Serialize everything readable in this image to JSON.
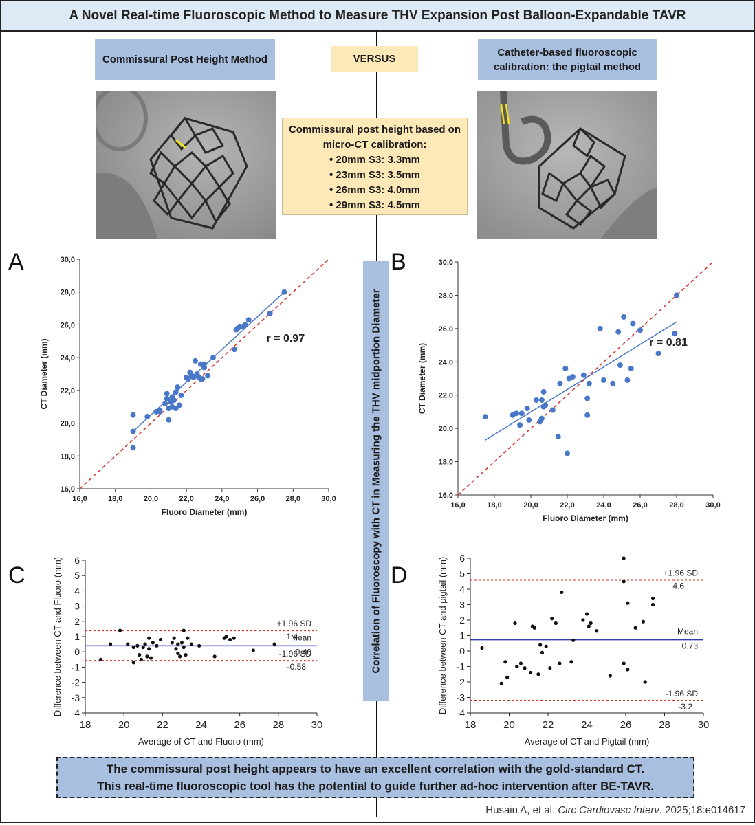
{
  "title": "A Novel Real-time Fluoroscopic Method to Measure THV Expansion Post Balloon-Expandable TAVR",
  "left_method": "Commissural Post Height Method",
  "versus": "VERSUS",
  "right_method_line1": "Catheter-based fluoroscopic",
  "right_method_line2": "calibration: the pigtail method",
  "calibration": {
    "heading_line1": "Commissural post height based on",
    "heading_line2": "micro-CT calibration:",
    "items": [
      "• 20mm S3: 3.3mm",
      "• 23mm S3: 3.5mm",
      "• 26mm S3: 4.0mm",
      "• 29mm S3: 4.5mm"
    ]
  },
  "vertical_label": "Correlation of Fluoroscopy with CT in Measuring the THV midportion Diameter",
  "panel_letters": [
    "A",
    "B",
    "C",
    "D"
  ],
  "conclusion_line1": "The commissural post height appears to have an excellent correlation with the gold-standard CT.",
  "conclusion_line2": "This real-time fluoroscopic tool has the potential to guide further ad-hoc intervention after BE-TAVR.",
  "citation_authors": "Husain A, et al. ",
  "citation_journal": "Circ Cardiovasc Interv",
  "citation_rest": ". 2025;18:e014617",
  "colors": {
    "accent_blue": "#a9bfe0",
    "cream": "#fde8b8",
    "point": "#4a78c8",
    "fit": "#4a78c8",
    "identity": "#d9312b"
  },
  "chart_data": [
    {
      "id": "A",
      "type": "scatter",
      "xlabel": "Fluoro Diameter (mm)",
      "ylabel": "CT Diameter (mm)",
      "xlim": [
        16,
        30
      ],
      "ylim": [
        16,
        30
      ],
      "ticks": [
        "16,0",
        "18,0",
        "20,0",
        "22,0",
        "24,0",
        "26,0",
        "28,0",
        "30,0"
      ],
      "annotation": "r = 0.97",
      "fit_line": [
        [
          19,
          19.5
        ],
        [
          27.5,
          28.0
        ]
      ],
      "points": [
        [
          19.0,
          18.5
        ],
        [
          19.0,
          19.5
        ],
        [
          19.0,
          20.5
        ],
        [
          19.8,
          20.4
        ],
        [
          20.3,
          20.7
        ],
        [
          20.5,
          20.8
        ],
        [
          20.5,
          20.7
        ],
        [
          20.8,
          21.2
        ],
        [
          20.9,
          21.5
        ],
        [
          20.9,
          21.8
        ],
        [
          21.0,
          20.9
        ],
        [
          21.0,
          20.2
        ],
        [
          21.1,
          21.3
        ],
        [
          21.2,
          21.0
        ],
        [
          21.2,
          21.6
        ],
        [
          21.3,
          21.4
        ],
        [
          21.4,
          21.9
        ],
        [
          21.4,
          20.9
        ],
        [
          21.5,
          22.2
        ],
        [
          21.6,
          21.1
        ],
        [
          21.7,
          21.7
        ],
        [
          22.0,
          22.8
        ],
        [
          22.1,
          22.7
        ],
        [
          22.2,
          23.1
        ],
        [
          22.3,
          22.9
        ],
        [
          22.4,
          22.8
        ],
        [
          22.5,
          23.8
        ],
        [
          22.6,
          23.0
        ],
        [
          22.7,
          22.8
        ],
        [
          22.8,
          23.6
        ],
        [
          22.8,
          22.7
        ],
        [
          22.9,
          22.7
        ],
        [
          23.0,
          23.4
        ],
        [
          23.0,
          23.6
        ],
        [
          23.2,
          22.9
        ],
        [
          23.5,
          24.0
        ],
        [
          24.7,
          24.5
        ],
        [
          24.8,
          25.7
        ],
        [
          24.9,
          25.8
        ],
        [
          25.0,
          25.9
        ],
        [
          25.2,
          25.9
        ],
        [
          25.3,
          26.0
        ],
        [
          25.5,
          26.3
        ],
        [
          26.7,
          26.7
        ],
        [
          27.5,
          28.0
        ]
      ]
    },
    {
      "id": "B",
      "type": "scatter",
      "xlabel": "Fluoro Diameter (mm)",
      "ylabel": "CT Diameter (mm)",
      "xlim": [
        16,
        30
      ],
      "ylim": [
        16,
        30
      ],
      "ticks": [
        "16,0",
        "18,0",
        "20,0",
        "22,0",
        "24,0",
        "26,0",
        "28,0",
        "30,0"
      ],
      "annotation": "r = 0.81",
      "fit_line": [
        [
          17.5,
          19.3
        ],
        [
          28.0,
          26.4
        ]
      ],
      "points": [
        [
          17.5,
          20.7
        ],
        [
          19.0,
          20.8
        ],
        [
          19.2,
          20.9
        ],
        [
          19.4,
          20.2
        ],
        [
          19.5,
          20.9
        ],
        [
          19.8,
          21.2
        ],
        [
          19.9,
          20.5
        ],
        [
          20.3,
          21.7
        ],
        [
          20.5,
          20.4
        ],
        [
          20.6,
          21.7
        ],
        [
          20.6,
          20.6
        ],
        [
          20.7,
          22.2
        ],
        [
          20.7,
          21.3
        ],
        [
          20.8,
          21.4
        ],
        [
          21.2,
          21.1
        ],
        [
          21.5,
          19.5
        ],
        [
          21.6,
          22.7
        ],
        [
          21.9,
          23.6
        ],
        [
          22.0,
          18.5
        ],
        [
          22.1,
          23.0
        ],
        [
          22.3,
          23.1
        ],
        [
          22.9,
          23.2
        ],
        [
          23.1,
          21.8
        ],
        [
          23.1,
          20.8
        ],
        [
          23.2,
          22.7
        ],
        [
          23.8,
          26.0
        ],
        [
          24.0,
          22.9
        ],
        [
          24.5,
          22.7
        ],
        [
          24.8,
          25.8
        ],
        [
          24.9,
          23.8
        ],
        [
          25.1,
          26.7
        ],
        [
          25.3,
          22.9
        ],
        [
          25.5,
          23.6
        ],
        [
          25.6,
          26.3
        ],
        [
          26.0,
          25.9
        ],
        [
          27.0,
          24.5
        ],
        [
          27.9,
          25.7
        ],
        [
          28.0,
          28.0
        ]
      ]
    },
    {
      "id": "C",
      "type": "scatter",
      "xlabel": "Average of CT and Fluoro (mm)",
      "ylabel": "Difference between CT and Fluoro (mm)",
      "xlim": [
        18,
        30
      ],
      "ylim": [
        -4,
        6
      ],
      "xticks": [
        "18",
        "20",
        "22",
        "24",
        "26",
        "28",
        "30"
      ],
      "yticks": [
        "-4",
        "-3",
        "-2",
        "-1",
        "0",
        "1",
        "2",
        "3",
        "4",
        "5",
        "6"
      ],
      "mean": 0.4,
      "upper": 1.4,
      "lower": -0.58,
      "upper_label": "+1.96 SD",
      "upper_value": "1.4",
      "mean_label": "Mean",
      "mean_value": "0.40",
      "lower_label": "-1.96 SD",
      "lower_value": "-0.58",
      "points": [
        [
          18.8,
          -0.5
        ],
        [
          19.3,
          0.5
        ],
        [
          19.8,
          1.4
        ],
        [
          20.2,
          0.5
        ],
        [
          20.5,
          0.3
        ],
        [
          20.5,
          -0.7
        ],
        [
          20.7,
          0.4
        ],
        [
          20.8,
          -0.2
        ],
        [
          20.9,
          -0.5
        ],
        [
          21.0,
          0.3
        ],
        [
          21.1,
          0.5
        ],
        [
          21.2,
          -0.3
        ],
        [
          21.3,
          0.9
        ],
        [
          21.3,
          0.2
        ],
        [
          21.4,
          -0.4
        ],
        [
          21.5,
          0.6
        ],
        [
          21.7,
          0.4
        ],
        [
          21.9,
          0.8
        ],
        [
          22.5,
          0.6
        ],
        [
          22.6,
          0.9
        ],
        [
          22.7,
          0.2
        ],
        [
          22.8,
          0.5
        ],
        [
          22.8,
          -0.1
        ],
        [
          22.9,
          -0.3
        ],
        [
          23.0,
          0.6
        ],
        [
          23.1,
          1.4
        ],
        [
          23.1,
          0.3
        ],
        [
          23.2,
          -0.2
        ],
        [
          23.3,
          0.9
        ],
        [
          23.5,
          0.5
        ],
        [
          23.9,
          0.4
        ],
        [
          24.7,
          -0.3
        ],
        [
          25.2,
          0.9
        ],
        [
          25.3,
          1.0
        ],
        [
          25.5,
          0.8
        ],
        [
          25.7,
          0.9
        ],
        [
          26.7,
          0.1
        ],
        [
          27.8,
          0.5
        ]
      ]
    },
    {
      "id": "D",
      "type": "scatter",
      "xlabel": "Average of CT and Pigtail (mm)",
      "ylabel": "Difference between CT and pigtail (mm)",
      "xlim": [
        18,
        30
      ],
      "ylim": [
        -4,
        6
      ],
      "xticks": [
        "18",
        "20",
        "22",
        "24",
        "26",
        "28",
        "30"
      ],
      "yticks": [
        "-4",
        "-3",
        "-2",
        "-1",
        "0",
        "1",
        "2",
        "3",
        "4",
        "5",
        "6"
      ],
      "mean": 0.73,
      "upper": 4.6,
      "lower": -3.2,
      "upper_label": "+1.96 SD",
      "upper_value": "4.6",
      "mean_label": "Mean",
      "mean_value": "0.73",
      "lower_label": "-1.96 SD",
      "lower_value": "-3.2",
      "points": [
        [
          18.6,
          0.2
        ],
        [
          19.6,
          -2.1
        ],
        [
          19.8,
          -0.7
        ],
        [
          19.9,
          -1.7
        ],
        [
          20.3,
          1.8
        ],
        [
          20.4,
          -1.0
        ],
        [
          20.6,
          -0.8
        ],
        [
          20.8,
          -1.1
        ],
        [
          21.1,
          -1.4
        ],
        [
          21.2,
          1.6
        ],
        [
          21.3,
          1.5
        ],
        [
          21.5,
          -1.5
        ],
        [
          21.6,
          0.4
        ],
        [
          21.7,
          -0.1
        ],
        [
          21.9,
          0.3
        ],
        [
          22.1,
          -1.1
        ],
        [
          22.2,
          2.1
        ],
        [
          22.4,
          1.8
        ],
        [
          22.6,
          -0.8
        ],
        [
          22.7,
          3.8
        ],
        [
          23.2,
          -0.7
        ],
        [
          23.3,
          0.7
        ],
        [
          23.8,
          2.0
        ],
        [
          24.0,
          2.4
        ],
        [
          24.1,
          1.6
        ],
        [
          24.2,
          1.8
        ],
        [
          24.5,
          1.3
        ],
        [
          25.2,
          -1.6
        ],
        [
          25.9,
          4.5
        ],
        [
          25.9,
          6.0
        ],
        [
          25.9,
          -0.8
        ],
        [
          26.1,
          3.1
        ],
        [
          26.1,
          -1.2
        ],
        [
          26.5,
          1.5
        ],
        [
          26.9,
          1.9
        ],
        [
          27.0,
          -2.0
        ],
        [
          27.4,
          3.0
        ],
        [
          27.4,
          3.4
        ]
      ]
    }
  ]
}
